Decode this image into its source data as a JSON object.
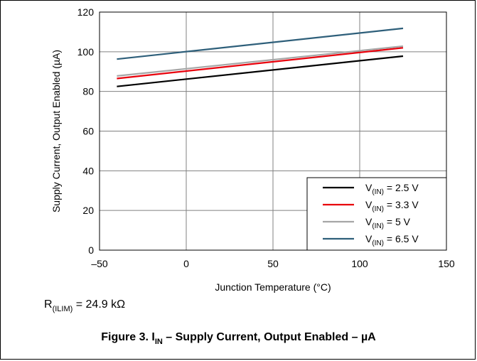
{
  "chart_data": {
    "type": "line",
    "xlabel": "Junction Temperature (°C)",
    "ylabel": "Supply Current, Output Enabled (µA)",
    "xlim": [
      -50,
      150
    ],
    "ylim": [
      0,
      120
    ],
    "x_ticks": [
      "–50",
      "0",
      "50",
      "100",
      "150"
    ],
    "x_tick_values": [
      -50,
      0,
      50,
      100,
      150
    ],
    "y_ticks": [
      "0",
      "20",
      "40",
      "60",
      "80",
      "100",
      "120"
    ],
    "y_tick_values": [
      0,
      20,
      40,
      60,
      80,
      100,
      120
    ],
    "grid": true,
    "legend_position": "bottom-right",
    "series": [
      {
        "name_main": "V",
        "name_sub": "(IN)",
        "name_tail": " = 2.5 V",
        "color": "#000000",
        "x": [
          -40,
          125
        ],
        "y": [
          82.5,
          97.8
        ]
      },
      {
        "name_main": "V",
        "name_sub": "(IN)",
        "name_tail": " = 3.3 V",
        "color": "#e8000b",
        "x": [
          -40,
          125
        ],
        "y": [
          86.5,
          102.0
        ]
      },
      {
        "name_main": "V",
        "name_sub": "(IN)",
        "name_tail": " = 5 V",
        "color": "#a6a6a6",
        "x": [
          -40,
          125
        ],
        "y": [
          87.8,
          102.8
        ]
      },
      {
        "name_main": "V",
        "name_sub": "(IN)",
        "name_tail": " = 6.5 V",
        "color": "#2e5f7a",
        "x": [
          -40,
          125
        ],
        "y": [
          96.3,
          111.8
        ]
      }
    ]
  },
  "note": {
    "main": "R",
    "sub": "(ILIM)",
    "tail": " = 24.9 kΩ"
  },
  "caption": {
    "prefix": "Figure 3. I",
    "sub": "IN",
    "suffix": " – Supply Current, Output Enabled – µA"
  }
}
